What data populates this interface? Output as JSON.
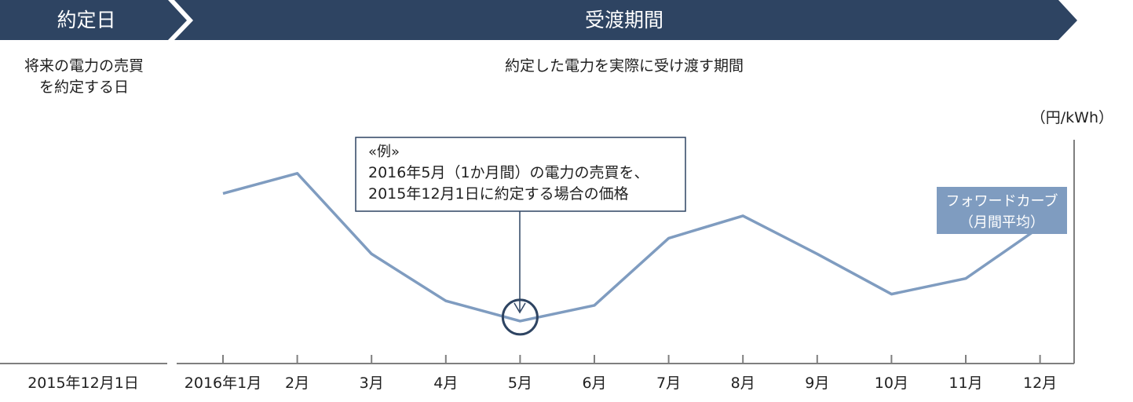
{
  "header": {
    "contract_day_label": "約定日",
    "delivery_period_label": "受渡期間"
  },
  "descriptions": {
    "contract_day_lines": [
      "将来の電力の売買",
      "を約定する日"
    ],
    "delivery_period_text": "約定した電力を実際に受け渡す期間"
  },
  "example_callout": {
    "lines": [
      "«例»",
      "2016年5月（1か月間）の電力の売買を、",
      "2015年12月1日に約定する場合の価格"
    ]
  },
  "legend_box": {
    "lines": [
      "フォワードカーブ",
      "（月間平均）"
    ]
  },
  "colors": {
    "header_fill": "#2e4462",
    "header_text": "#ffffff",
    "curve": "#7f9cc0",
    "legend_fill": "#7f9cc0",
    "legend_text": "#ffffff",
    "axis": "#7f7f7f",
    "callout_border": "#2e4462",
    "highlight_circle": "#2e4462"
  },
  "chart_data": {
    "type": "line",
    "title": "",
    "xlabel": "",
    "ylabel": "（円/kWh）",
    "contract_date_label": "2015年12月1日",
    "categories": [
      "2016年1月",
      "2月",
      "3月",
      "4月",
      "5月",
      "6月",
      "7月",
      "8月",
      "9月",
      "10月",
      "11月",
      "12月"
    ],
    "series": [
      {
        "name": "フォワードカーブ（月間平均）",
        "values": [
          7.6,
          8.5,
          4.9,
          2.8,
          1.9,
          2.6,
          5.6,
          6.6,
          4.9,
          3.1,
          3.8,
          6.1
        ]
      }
    ],
    "ylim": [
      0,
      10
    ],
    "highlight": {
      "category": "5月"
    },
    "grid": false,
    "legend": "right"
  }
}
